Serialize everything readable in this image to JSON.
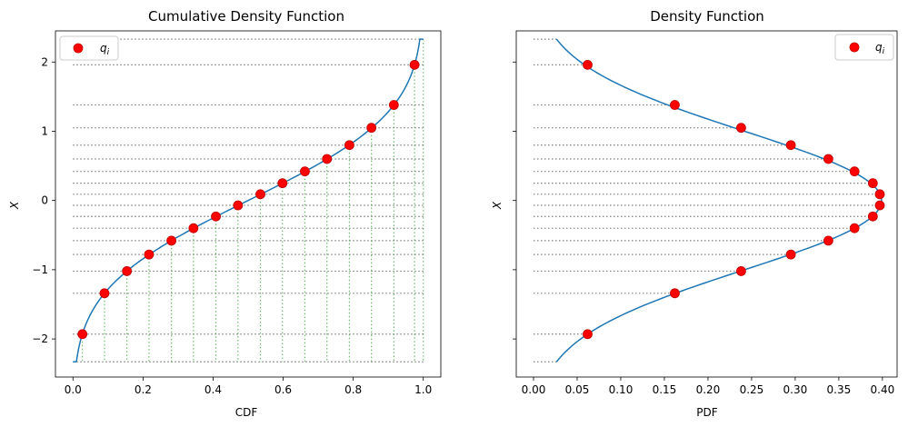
{
  "chart_data": [
    {
      "type": "line",
      "title": "Cumulative Density Function",
      "xlabel": "CDF",
      "ylabel": "X",
      "xlim": [
        -0.05,
        1.05
      ],
      "ylim": [
        -2.55,
        2.45
      ],
      "xticks": [
        0.0,
        0.2,
        0.4,
        0.6,
        0.8,
        1.0
      ],
      "xtick_labels": [
        "0.0",
        "0.2",
        "0.4",
        "0.6",
        "0.8",
        "1.0"
      ],
      "yticks": [
        -2,
        -1,
        0,
        1,
        2
      ],
      "ytick_labels": [
        "−2",
        "−1",
        "0",
        "1",
        "2"
      ],
      "curve_range": [
        -2.33,
        2.33
      ],
      "guides": {
        "horizontal": "dotted gray to x=1.0",
        "vertical": "dotted green down to y=-2.33"
      },
      "series": [
        {
          "name": "q_i",
          "points": [
            [
              0.027,
              -1.93
            ],
            [
              0.09,
              -1.34
            ],
            [
              0.154,
              -1.02
            ],
            [
              0.217,
              -0.78
            ],
            [
              0.281,
              -0.58
            ],
            [
              0.344,
              -0.4
            ],
            [
              0.408,
              -0.23
            ],
            [
              0.471,
              -0.07
            ],
            [
              0.535,
              0.09
            ],
            [
              0.598,
              0.25
            ],
            [
              0.662,
              0.42
            ],
            [
              0.725,
              0.6
            ],
            [
              0.789,
              0.8
            ],
            [
              0.852,
              1.05
            ],
            [
              0.916,
              1.38
            ],
            [
              0.975,
              1.96
            ]
          ]
        }
      ],
      "legend": {
        "label": "q",
        "subscript": "i",
        "placement": "top-left"
      }
    },
    {
      "type": "line",
      "title": "Density Function",
      "xlabel": "PDF",
      "ylabel": "X",
      "xlim": [
        -0.0198,
        0.4168
      ],
      "ylim": [
        -2.55,
        2.45
      ],
      "xticks": [
        0.0,
        0.05,
        0.1,
        0.15,
        0.2,
        0.25,
        0.3,
        0.35,
        0.4
      ],
      "xtick_labels": [
        "0.00",
        "0.05",
        "0.10",
        "0.15",
        "0.20",
        "0.25",
        "0.30",
        "0.35",
        "0.40"
      ],
      "yticks": [
        -2,
        -1,
        0,
        1,
        2
      ],
      "ytick_labels": [
        "",
        "",
        "",
        "",
        ""
      ],
      "curve_range": [
        -2.33,
        2.33
      ],
      "guides": {
        "horizontal": "dotted gray from x=0 to curve"
      },
      "series": [
        {
          "name": "q_i",
          "points": [
            [
              0.062,
              -1.93
            ],
            [
              0.162,
              -1.34
            ],
            [
              0.238,
              -1.02
            ],
            [
              0.295,
              -0.78
            ],
            [
              0.338,
              -0.58
            ],
            [
              0.368,
              -0.4
            ],
            [
              0.389,
              -0.23
            ],
            [
              0.397,
              -0.07
            ],
            [
              0.397,
              0.09
            ],
            [
              0.389,
              0.25
            ],
            [
              0.368,
              0.42
            ],
            [
              0.338,
              0.6
            ],
            [
              0.295,
              0.8
            ],
            [
              0.238,
              1.05
            ],
            [
              0.162,
              1.38
            ],
            [
              0.062,
              1.96
            ]
          ]
        }
      ],
      "legend": {
        "label": "q",
        "subscript": "i",
        "placement": "top-right"
      }
    }
  ],
  "colors": {
    "curve": "#1f77b4",
    "points": "#ff0000",
    "point_edge": "#c00000",
    "hguide": "#808080",
    "vguide": "#2ca02c"
  }
}
